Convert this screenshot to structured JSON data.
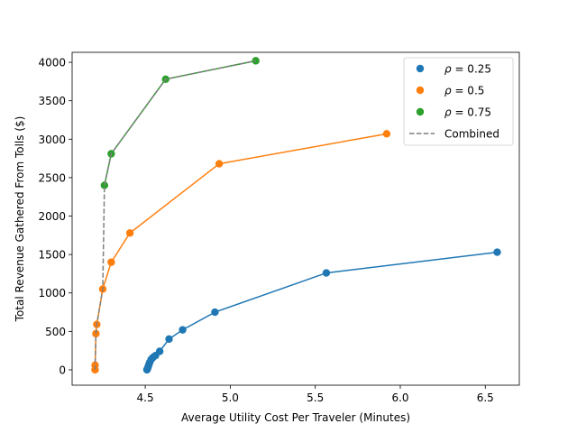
{
  "chart_data": {
    "type": "scatter",
    "title": "",
    "xlabel": "Average Utility Cost Per Traveler (Minutes)",
    "ylabel": "Total Revenue Gathered From Tolls ($)",
    "xlim": [
      4.07,
      6.7
    ],
    "ylim": [
      -200,
      4130
    ],
    "xticks": [
      4.5,
      5.0,
      5.5,
      6.0,
      6.5
    ],
    "xtick_labels": [
      "4.5",
      "5.0",
      "5.5",
      "6.0",
      "6.5"
    ],
    "yticks": [
      0,
      500,
      1000,
      1500,
      2000,
      2500,
      3000,
      3500,
      4000
    ],
    "ytick_labels": [
      "0",
      "500",
      "1000",
      "1500",
      "2000",
      "2500",
      "3000",
      "3500",
      "4000"
    ],
    "grid": false,
    "legend_position": "upper right",
    "series": [
      {
        "name": "ρ = 0.25",
        "legend_label": {
          "prefix": "ρ",
          "suffix": " = 0.25"
        },
        "color": "#1f77b4",
        "x": [
          4.51,
          4.512,
          4.515,
          4.518,
          4.522,
          4.527,
          4.535,
          4.545,
          4.56,
          4.585,
          4.64,
          4.72,
          4.91,
          5.565,
          6.57
        ],
        "y": [
          0,
          10,
          25,
          45,
          70,
          100,
          135,
          160,
          185,
          240,
          400,
          520,
          750,
          1260,
          1530
        ]
      },
      {
        "name": "ρ = 0.5",
        "legend_label": {
          "prefix": "ρ",
          "suffix": " = 0.5"
        },
        "color": "#ff7f0e",
        "x": [
          4.205,
          4.205,
          4.21,
          4.215,
          4.25,
          4.3,
          4.41,
          4.935,
          5.92
        ],
        "y": [
          0,
          60,
          470,
          590,
          1050,
          1400,
          1780,
          2680,
          3070
        ]
      },
      {
        "name": "ρ = 0.75",
        "legend_label": {
          "prefix": "ρ",
          "suffix": " = 0.75"
        },
        "color": "#2ca02c",
        "x": [
          4.26,
          4.3,
          4.62,
          5.15
        ],
        "y": [
          2400,
          2810,
          3780,
          4020
        ]
      }
    ],
    "combined": {
      "name": "Combined",
      "color": "#7f7f7f",
      "x": [
        4.205,
        4.21,
        4.215,
        4.25,
        4.255,
        4.26,
        4.3,
        4.62,
        5.15
      ],
      "y": [
        0,
        470,
        590,
        1050,
        1700,
        2400,
        2810,
        3780,
        4020
      ]
    }
  }
}
